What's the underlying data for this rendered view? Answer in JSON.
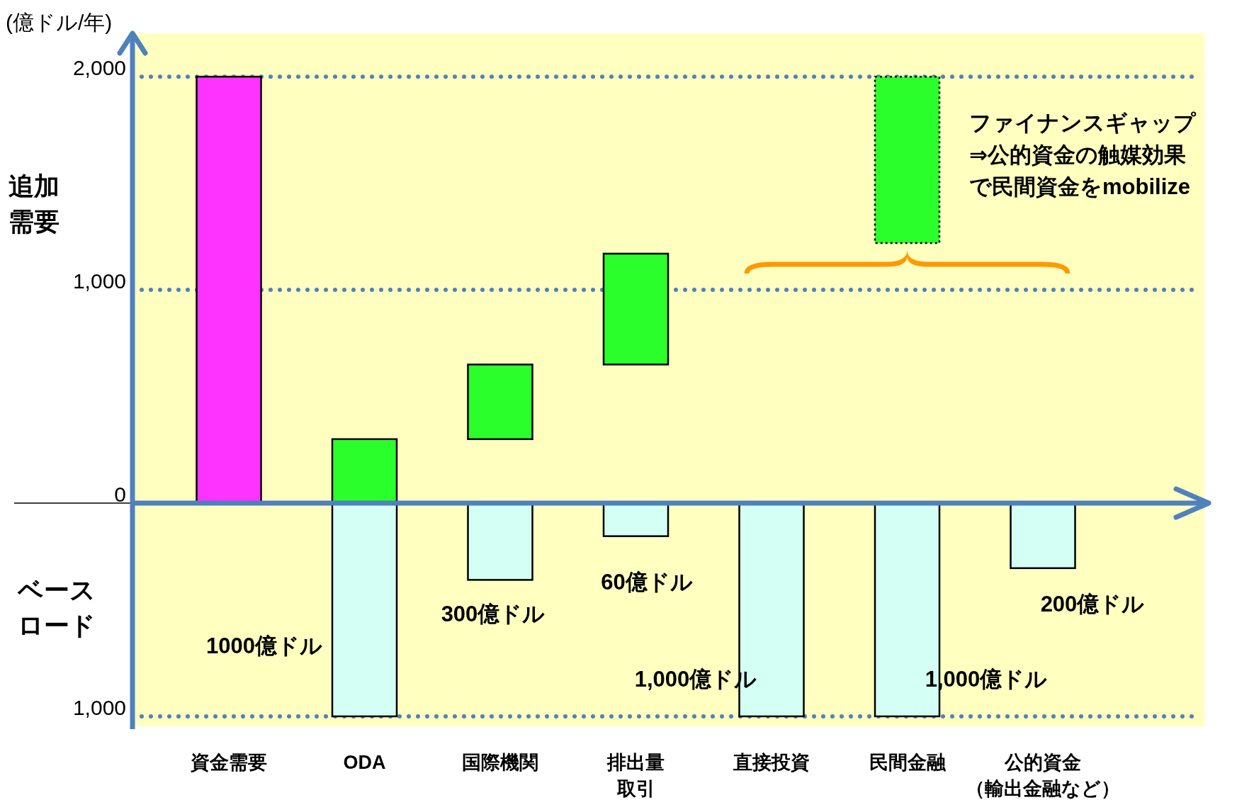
{
  "chart_data": {
    "type": "bar",
    "ylabel": "(億ドル/年)",
    "categories": [
      "資金需要",
      "ODA",
      "国際機関",
      "排出量取引",
      "直接投資",
      "民間金融",
      "公的資金（輸出金融など）"
    ],
    "series": [
      {
        "color": "#ff33ff",
        "values": [
          2000,
          null,
          null,
          null,
          null,
          null,
          null
        ]
      },
      {
        "color": "#2bff2b",
        "base": [
          null,
          0,
          300,
          650,
          null,
          null,
          null
        ],
        "values": [
          null,
          300,
          350,
          520,
          null,
          null,
          null
        ]
      },
      {
        "color": "#2bff2b",
        "line_style": "dotted",
        "base": [
          null,
          null,
          null,
          null,
          null,
          1220,
          null
        ],
        "values": [
          null,
          null,
          null,
          null,
          null,
          780,
          null
        ]
      },
      {
        "color": "#d4fff4",
        "values": [
          null,
          -1000,
          -360,
          -155,
          -1000,
          -1000,
          -305
        ]
      }
    ],
    "ylim": [
      -1060,
      2210
    ],
    "yticks": [
      {
        "value": 2000,
        "label": "2,000"
      },
      {
        "value": 1000,
        "label": "1,000"
      },
      0,
      {
        "value": -1000,
        "label": "1,000"
      }
    ],
    "ref_lines": [
      {
        "axis": "y",
        "value": 2000,
        "line_style": "dotted",
        "color": "#4f81bd"
      },
      {
        "axis": "y",
        "value": 1000,
        "line_style": "dotted",
        "color": "#4f81bd"
      },
      {
        "axis": "y",
        "value": -1000,
        "line_style": "dotted",
        "color": "#4f81bd"
      },
      {
        "axis": "y",
        "value": 0,
        "line_style": "solid",
        "color": "#4f81bd"
      }
    ],
    "annotations": [
      "追加需要",
      "ベースロード",
      "ファイナンスギャップ⇒公的資金の触媒効果で民間資金をmobilize",
      "1000億ドル",
      "300億ドル",
      "60億ドル",
      "1,000億ドル",
      "1,000億ドル",
      "200億ドル"
    ]
  }
}
